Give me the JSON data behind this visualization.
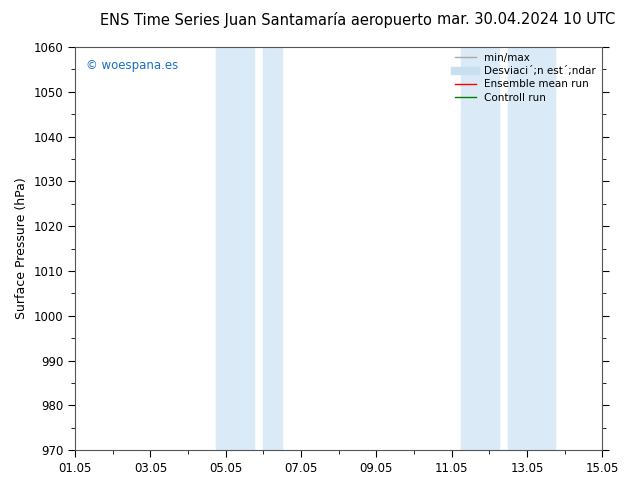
{
  "title_left": "ENS Time Series Juan Santamaría aeropuerto",
  "title_right": "mar. 30.04.2024 10 UTC",
  "ylabel": "Surface Pressure (hPa)",
  "ylim": [
    970,
    1060
  ],
  "yticks": [
    970,
    980,
    990,
    1000,
    1010,
    1020,
    1030,
    1040,
    1050,
    1060
  ],
  "xlim_start": 0.0,
  "xlim_end": 14.0,
  "xtick_labels": [
    "01.05",
    "03.05",
    "05.05",
    "07.05",
    "09.05",
    "11.05",
    "13.05",
    "15.05"
  ],
  "xtick_positions": [
    0,
    2,
    4,
    6,
    8,
    10,
    12,
    14
  ],
  "shaded_bands": [
    {
      "x_start": 3.75,
      "x_end": 4.75
    },
    {
      "x_start": 5.0,
      "x_end": 5.5
    },
    {
      "x_start": 10.25,
      "x_end": 11.25
    },
    {
      "x_start": 11.5,
      "x_end": 12.75
    }
  ],
  "shade_color": "#daeaf7",
  "watermark": "© woespana.es",
  "watermark_color": "#1a6fc4",
  "legend_labels": [
    "min/max",
    "Desviaci´;n est´;ndar",
    "Ensemble mean run",
    "Controll run"
  ],
  "legend_colors": [
    "#aaaaaa",
    "#c8dff0",
    "#ff0000",
    "#008000"
  ],
  "legend_lws": [
    1.0,
    6,
    1.0,
    1.0
  ],
  "bg_color": "#ffffff",
  "title_fontsize": 10.5,
  "tick_fontsize": 8.5,
  "ylabel_fontsize": 9
}
